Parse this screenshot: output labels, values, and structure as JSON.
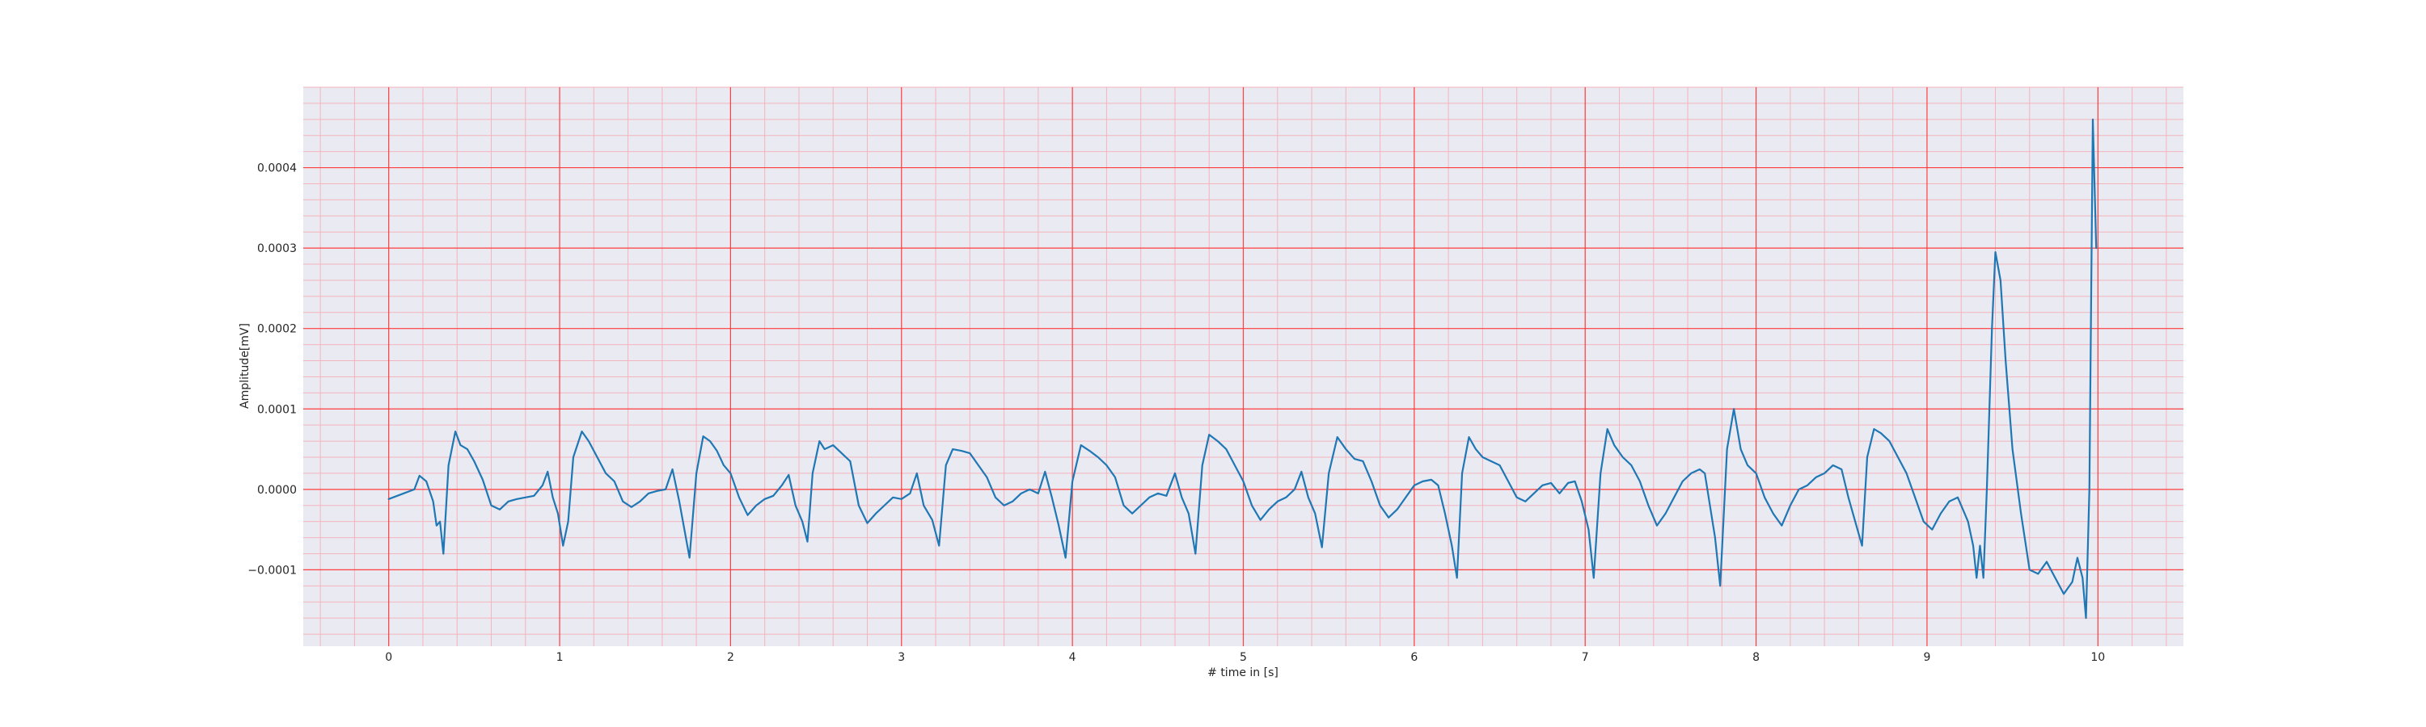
{
  "chart_data": {
    "type": "line",
    "title": "",
    "xlabel": "# time in [s]",
    "ylabel": "Amplitude[mV]",
    "xlim": [
      -0.5,
      10.5
    ],
    "ylim": [
      -0.000195,
      0.0005
    ],
    "x_ticks": [
      0,
      1,
      2,
      3,
      4,
      5,
      6,
      7,
      8,
      9,
      10
    ],
    "x_tick_labels": [
      "0",
      "1",
      "2",
      "3",
      "4",
      "5",
      "6",
      "7",
      "8",
      "9",
      "10"
    ],
    "y_ticks": [
      -0.0001,
      0.0,
      0.0001,
      0.0002,
      0.0003,
      0.0004
    ],
    "y_tick_labels": [
      "−0.0001",
      "0.0000",
      "0.0001",
      "0.0002",
      "0.0003",
      "0.0004"
    ],
    "x_minor_step": 0.2,
    "y_minor_step": 2e-05,
    "grid": true,
    "colors": {
      "line": "#1f77b4",
      "background": "#eaeaf2",
      "major_grid": "#ff4040",
      "minor_grid": "#f4b4bc"
    },
    "series": [
      {
        "points": [
          [
            0.0,
            -1.2e-05
          ],
          [
            0.05,
            -8e-06
          ],
          [
            0.1,
            -4e-06
          ],
          [
            0.15,
            0.0
          ],
          [
            0.18,
            1.7e-05
          ],
          [
            0.22,
            1e-05
          ],
          [
            0.26,
            -1.5e-05
          ],
          [
            0.28,
            -4.5e-05
          ],
          [
            0.3,
            -4e-05
          ],
          [
            0.32,
            -8e-05
          ],
          [
            0.35,
            3e-05
          ],
          [
            0.39,
            7.2e-05
          ],
          [
            0.42,
            5.5e-05
          ],
          [
            0.46,
            5e-05
          ],
          [
            0.5,
            3.5e-05
          ],
          [
            0.55,
            1.2e-05
          ],
          [
            0.6,
            -2e-05
          ],
          [
            0.65,
            -2.5e-05
          ],
          [
            0.7,
            -1.5e-05
          ],
          [
            0.75,
            -1.2e-05
          ],
          [
            0.8,
            -1e-05
          ],
          [
            0.85,
            -8e-06
          ],
          [
            0.9,
            5e-06
          ],
          [
            0.93,
            2.2e-05
          ],
          [
            0.96,
            -1e-05
          ],
          [
            0.99,
            -3e-05
          ],
          [
            1.02,
            -7e-05
          ],
          [
            1.05,
            -4e-05
          ],
          [
            1.08,
            4e-05
          ],
          [
            1.13,
            7.2e-05
          ],
          [
            1.17,
            6e-05
          ],
          [
            1.22,
            4e-05
          ],
          [
            1.27,
            2e-05
          ],
          [
            1.32,
            1e-05
          ],
          [
            1.37,
            -1.5e-05
          ],
          [
            1.42,
            -2.2e-05
          ],
          [
            1.47,
            -1.5e-05
          ],
          [
            1.52,
            -5e-06
          ],
          [
            1.57,
            -2e-06
          ],
          [
            1.62,
            0.0
          ],
          [
            1.66,
            2.5e-05
          ],
          [
            1.7,
            -1.5e-05
          ],
          [
            1.73,
            -5e-05
          ],
          [
            1.76,
            -8.5e-05
          ],
          [
            1.8,
            2e-05
          ],
          [
            1.84,
            6.6e-05
          ],
          [
            1.88,
            6e-05
          ],
          [
            1.92,
            4.8e-05
          ],
          [
            1.96,
            3e-05
          ],
          [
            2.0,
            2e-05
          ],
          [
            2.05,
            -1e-05
          ],
          [
            2.1,
            -3.2e-05
          ],
          [
            2.15,
            -2e-05
          ],
          [
            2.2,
            -1.2e-05
          ],
          [
            2.25,
            -8e-06
          ],
          [
            2.3,
            5e-06
          ],
          [
            2.34,
            1.8e-05
          ],
          [
            2.38,
            -2e-05
          ],
          [
            2.42,
            -4e-05
          ],
          [
            2.45,
            -6.5e-05
          ],
          [
            2.48,
            2e-05
          ],
          [
            2.52,
            6e-05
          ],
          [
            2.55,
            5e-05
          ],
          [
            2.6,
            5.5e-05
          ],
          [
            2.65,
            4.5e-05
          ],
          [
            2.7,
            3.5e-05
          ],
          [
            2.75,
            -2e-05
          ],
          [
            2.8,
            -4.2e-05
          ],
          [
            2.85,
            -3e-05
          ],
          [
            2.9,
            -2e-05
          ],
          [
            2.95,
            -1e-05
          ],
          [
            3.0,
            -1.2e-05
          ],
          [
            3.05,
            -5e-06
          ],
          [
            3.09,
            2e-05
          ],
          [
            3.13,
            -2e-05
          ],
          [
            3.18,
            -3.8e-05
          ],
          [
            3.22,
            -7e-05
          ],
          [
            3.26,
            3e-05
          ],
          [
            3.3,
            5e-05
          ],
          [
            3.35,
            4.8e-05
          ],
          [
            3.4,
            4.5e-05
          ],
          [
            3.45,
            3e-05
          ],
          [
            3.5,
            1.5e-05
          ],
          [
            3.55,
            -1e-05
          ],
          [
            3.6,
            -2e-05
          ],
          [
            3.65,
            -1.5e-05
          ],
          [
            3.7,
            -5e-06
          ],
          [
            3.75,
            0.0
          ],
          [
            3.8,
            -5e-06
          ],
          [
            3.84,
            2.2e-05
          ],
          [
            3.88,
            -1e-05
          ],
          [
            3.92,
            -4.5e-05
          ],
          [
            3.96,
            -8.5e-05
          ],
          [
            4.0,
            1e-05
          ],
          [
            4.05,
            5.5e-05
          ],
          [
            4.1,
            4.8e-05
          ],
          [
            4.15,
            4e-05
          ],
          [
            4.2,
            3e-05
          ],
          [
            4.25,
            1.5e-05
          ],
          [
            4.3,
            -2e-05
          ],
          [
            4.35,
            -3e-05
          ],
          [
            4.4,
            -2e-05
          ],
          [
            4.45,
            -1e-05
          ],
          [
            4.5,
            -5e-06
          ],
          [
            4.55,
            -8e-06
          ],
          [
            4.6,
            2e-05
          ],
          [
            4.64,
            -1e-05
          ],
          [
            4.68,
            -3e-05
          ],
          [
            4.72,
            -8e-05
          ],
          [
            4.76,
            3e-05
          ],
          [
            4.8,
            6.8e-05
          ],
          [
            4.85,
            6e-05
          ],
          [
            4.9,
            5e-05
          ],
          [
            4.95,
            3e-05
          ],
          [
            5.0,
            1e-05
          ],
          [
            5.05,
            -2e-05
          ],
          [
            5.1,
            -3.8e-05
          ],
          [
            5.15,
            -2.5e-05
          ],
          [
            5.2,
            -1.5e-05
          ],
          [
            5.25,
            -1e-05
          ],
          [
            5.3,
            0.0
          ],
          [
            5.34,
            2.2e-05
          ],
          [
            5.38,
            -1e-05
          ],
          [
            5.42,
            -3e-05
          ],
          [
            5.46,
            -7.2e-05
          ],
          [
            5.5,
            2e-05
          ],
          [
            5.55,
            6.5e-05
          ],
          [
            5.6,
            5e-05
          ],
          [
            5.65,
            3.8e-05
          ],
          [
            5.7,
            3.5e-05
          ],
          [
            5.75,
            1e-05
          ],
          [
            5.8,
            -2e-05
          ],
          [
            5.85,
            -3.5e-05
          ],
          [
            5.9,
            -2.5e-05
          ],
          [
            5.95,
            -1e-05
          ],
          [
            6.0,
            5e-06
          ],
          [
            6.05,
            1e-05
          ],
          [
            6.1,
            1.2e-05
          ],
          [
            6.14,
            5e-06
          ],
          [
            6.18,
            -3e-05
          ],
          [
            6.22,
            -7e-05
          ],
          [
            6.25,
            -0.00011
          ],
          [
            6.28,
            2e-05
          ],
          [
            6.32,
            6.5e-05
          ],
          [
            6.36,
            5e-05
          ],
          [
            6.4,
            4e-05
          ],
          [
            6.45,
            3.5e-05
          ],
          [
            6.5,
            3e-05
          ],
          [
            6.55,
            1e-05
          ],
          [
            6.6,
            -1e-05
          ],
          [
            6.65,
            -1.5e-05
          ],
          [
            6.7,
            -5e-06
          ],
          [
            6.75,
            5e-06
          ],
          [
            6.8,
            8e-06
          ],
          [
            6.85,
            -5e-06
          ],
          [
            6.9,
            8e-06
          ],
          [
            6.94,
            1e-05
          ],
          [
            6.98,
            -1.5e-05
          ],
          [
            7.02,
            -5e-05
          ],
          [
            7.05,
            -0.00011
          ],
          [
            7.09,
            2e-05
          ],
          [
            7.13,
            7.5e-05
          ],
          [
            7.17,
            5.5e-05
          ],
          [
            7.22,
            4e-05
          ],
          [
            7.27,
            3e-05
          ],
          [
            7.32,
            1e-05
          ],
          [
            7.37,
            -2e-05
          ],
          [
            7.42,
            -4.5e-05
          ],
          [
            7.47,
            -3e-05
          ],
          [
            7.52,
            -1e-05
          ],
          [
            7.57,
            1e-05
          ],
          [
            7.62,
            2e-05
          ],
          [
            7.67,
            2.5e-05
          ],
          [
            7.7,
            2e-05
          ],
          [
            7.73,
            -2e-05
          ],
          [
            7.76,
            -6e-05
          ],
          [
            7.79,
            -0.00012
          ],
          [
            7.83,
            5e-05
          ],
          [
            7.87,
            0.0001
          ],
          [
            7.91,
            5e-05
          ],
          [
            7.95,
            3e-05
          ],
          [
            8.0,
            2e-05
          ],
          [
            8.05,
            -1e-05
          ],
          [
            8.1,
            -3e-05
          ],
          [
            8.15,
            -4.5e-05
          ],
          [
            8.2,
            -2e-05
          ],
          [
            8.25,
            0.0
          ],
          [
            8.3,
            5e-06
          ],
          [
            8.35,
            1.5e-05
          ],
          [
            8.4,
            2e-05
          ],
          [
            8.45,
            3e-05
          ],
          [
            8.5,
            2.5e-05
          ],
          [
            8.54,
            -1e-05
          ],
          [
            8.58,
            -4e-05
          ],
          [
            8.62,
            -7e-05
          ],
          [
            8.65,
            4e-05
          ],
          [
            8.69,
            7.5e-05
          ],
          [
            8.73,
            7e-05
          ],
          [
            8.78,
            6e-05
          ],
          [
            8.83,
            4e-05
          ],
          [
            8.88,
            2e-05
          ],
          [
            8.93,
            -1e-05
          ],
          [
            8.98,
            -4e-05
          ],
          [
            9.03,
            -5e-05
          ],
          [
            9.08,
            -3e-05
          ],
          [
            9.13,
            -1.5e-05
          ],
          [
            9.18,
            -1e-05
          ],
          [
            9.21,
            -2.5e-05
          ],
          [
            9.24,
            -4e-05
          ],
          [
            9.27,
            -7e-05
          ],
          [
            9.29,
            -0.00011
          ],
          [
            9.31,
            -7e-05
          ],
          [
            9.33,
            -0.00011
          ],
          [
            9.35,
            0.0
          ],
          [
            9.38,
            0.0002
          ],
          [
            9.4,
            0.000295
          ],
          [
            9.43,
            0.00026
          ],
          [
            9.46,
            0.00016
          ],
          [
            9.5,
            5e-05
          ],
          [
            9.55,
            -3e-05
          ],
          [
            9.6,
            -0.0001
          ],
          [
            9.65,
            -0.000105
          ],
          [
            9.7,
            -9e-05
          ],
          [
            9.75,
            -0.00011
          ],
          [
            9.8,
            -0.00013
          ],
          [
            9.85,
            -0.000115
          ],
          [
            9.88,
            -8.5e-05
          ],
          [
            9.91,
            -0.00011
          ],
          [
            9.93,
            -0.00016
          ],
          [
            9.95,
            0.0
          ],
          [
            9.97,
            0.00046
          ],
          [
            9.99,
            0.0003
          ]
        ]
      }
    ]
  }
}
